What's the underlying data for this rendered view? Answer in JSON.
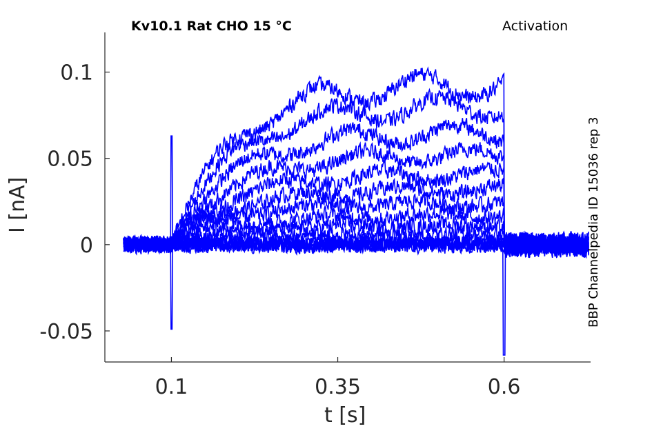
{
  "header": {
    "title": "Kv10.1  Rat  CHO  15 °C",
    "protocol": "Activation",
    "side_label": "BBP Channelpedia ID 15036 rep 3"
  },
  "colors": {
    "trace": "#0000ff",
    "axis": "#262626"
  },
  "chart_data": {
    "type": "line",
    "title": "Kv10.1  Rat  CHO  15 °C",
    "xlabel": "t [s]",
    "ylabel": "I [nA]",
    "xlim": [
      0.0,
      0.73
    ],
    "ylim": [
      -0.068,
      0.123
    ],
    "xticks": [
      0.1,
      0.35,
      0.6
    ],
    "xtick_labels": [
      "0.1",
      "0.35",
      "0.6"
    ],
    "yticks": [
      -0.05,
      0,
      0.05,
      0.1
    ],
    "ytick_labels": [
      "-0.05",
      "0",
      "0.05",
      "0.1"
    ],
    "grid": false,
    "legend": "none",
    "step_start_s": 0.1,
    "step_end_s": 0.6,
    "traces_start_s": 0.028,
    "traces_end_s": 0.727,
    "noise_amplitude_nA": 0.005,
    "series_step_current_nA": [
      0.0,
      0.0,
      0.0,
      0.0,
      0.002,
      0.006,
      0.011,
      0.017,
      0.024,
      0.032,
      0.041,
      0.052,
      0.065,
      0.08,
      0.093
    ],
    "onset_spike_nA": 0.063,
    "onset_dip_nA": -0.049,
    "offset_dip_nA": -0.064
  }
}
